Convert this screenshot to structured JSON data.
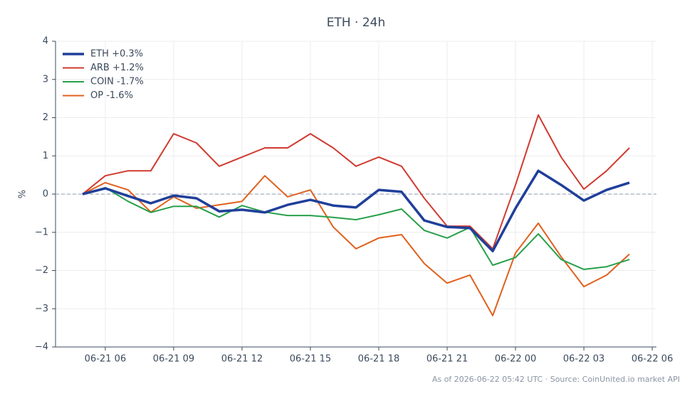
{
  "chart_data": {
    "type": "line",
    "title": "ETH · 24h",
    "y_label": "%",
    "footnote": "As of 2026-06-22 05:42 UTC · Source: CoinUnited.io market API",
    "x": [
      "06-21 05",
      "06-21 06",
      "06-21 07",
      "06-21 08",
      "06-21 09",
      "06-21 10",
      "06-21 11",
      "06-21 12",
      "06-21 13",
      "06-21 14",
      "06-21 15",
      "06-21 16",
      "06-21 17",
      "06-21 18",
      "06-21 19",
      "06-21 20",
      "06-21 21",
      "06-21 22",
      "06-21 23",
      "06-22 00",
      "06-22 01",
      "06-22 02",
      "06-22 03",
      "06-22 04",
      "06-22 05"
    ],
    "xlim": [
      "06-21 03:49",
      "06-22 06:11"
    ],
    "xticks": [
      "06-21 06",
      "06-21 09",
      "06-21 12",
      "06-21 15",
      "06-21 18",
      "06-21 21",
      "06-22 00",
      "06-22 03",
      "06-22 06"
    ],
    "ylim": [
      -4,
      4
    ],
    "yticks": [
      {
        "value": -4,
        "label": "−4"
      },
      {
        "value": -3,
        "label": "−3"
      },
      {
        "value": -2,
        "label": "−2"
      },
      {
        "value": -1,
        "label": "−1"
      },
      0,
      1,
      2,
      3,
      4
    ],
    "grid": true,
    "legend": "upper left",
    "hline": 0,
    "series": [
      {
        "name": "ETH +0.3%",
        "color": "#1f3f9a",
        "line_width": 3.5,
        "values": [
          0,
          0.15,
          -0.05,
          -0.24,
          -0.04,
          -0.11,
          -0.45,
          -0.41,
          -0.48,
          -0.28,
          -0.15,
          -0.3,
          -0.35,
          0.11,
          0.06,
          -0.69,
          -0.86,
          -0.89,
          -1.49,
          -0.37,
          0.61,
          0.24,
          -0.17,
          0.11,
          0.3
        ]
      },
      {
        "name": "ARB +1.2%",
        "color": "#d03a2f",
        "line_width": 2,
        "values": [
          0,
          0.48,
          0.61,
          0.61,
          1.58,
          1.34,
          0.73,
          0.97,
          1.21,
          1.21,
          1.58,
          1.21,
          0.73,
          0.97,
          0.73,
          -0.11,
          -0.84,
          -0.84,
          -1.43,
          0.24,
          2.07,
          0.97,
          0.13,
          0.61,
          1.21
        ]
      },
      {
        "name": "COIN -1.7%",
        "color": "#27a04a",
        "line_width": 2,
        "values": [
          0,
          0.17,
          -0.19,
          -0.48,
          -0.32,
          -0.32,
          -0.6,
          -0.3,
          -0.47,
          -0.56,
          -0.56,
          -0.61,
          -0.67,
          -0.54,
          -0.39,
          -0.95,
          -1.15,
          -0.87,
          -1.86,
          -1.66,
          -1.04,
          -1.71,
          -1.97,
          -1.9,
          -1.71
        ]
      },
      {
        "name": "OP -1.6%",
        "color": "#e0601e",
        "line_width": 2,
        "values": [
          0,
          0.3,
          0.11,
          -0.47,
          -0.07,
          -0.37,
          -0.28,
          -0.19,
          0.48,
          -0.07,
          0.11,
          -0.86,
          -1.43,
          -1.15,
          -1.06,
          -1.82,
          -2.33,
          -2.12,
          -3.18,
          -1.54,
          -0.76,
          -1.64,
          -2.42,
          -2.12,
          -1.57
        ]
      }
    ]
  }
}
